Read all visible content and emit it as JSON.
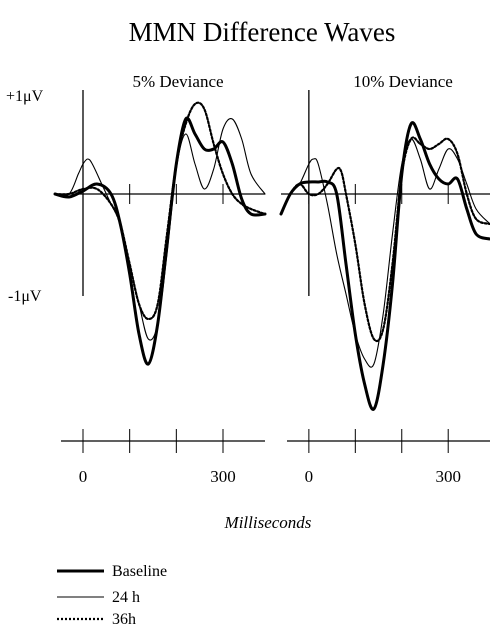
{
  "chart_data": {
    "type": "line",
    "title": "MMN Difference Waves",
    "xlabel": "Milliseconds",
    "y_tick_labels": {
      "top": "+1μV",
      "bottom": "-1μV"
    },
    "x_tick_labels": [
      "0",
      "300"
    ],
    "ylim": [
      -2.3,
      1.55
    ],
    "series_styles": [
      {
        "name": "Baseline",
        "stroke": "#000000",
        "width": 3.0,
        "dash": ""
      },
      {
        "name": "24 h",
        "stroke": "#000000",
        "width": 1.1,
        "dash": ""
      },
      {
        "name": "36h",
        "stroke": "#000000",
        "width": 2.2,
        "dash": "2,2"
      }
    ],
    "panels": [
      {
        "title": "5% Deviance",
        "xlim": [
          -60,
          390
        ],
        "series": [
          {
            "name": "Baseline",
            "x": [
              -60,
              -30,
              0,
              30,
              60,
              80,
              100,
              120,
              140,
              160,
              180,
              200,
              220,
              240,
              260,
              280,
              300,
              320,
              340,
              360,
              390
            ],
            "y": [
              0.0,
              -0.03,
              0.03,
              0.1,
              0.0,
              -0.3,
              -0.8,
              -1.4,
              -1.7,
              -1.3,
              -0.5,
              0.3,
              0.75,
              0.6,
              0.45,
              0.45,
              0.52,
              0.3,
              -0.05,
              -0.2,
              -0.2
            ]
          },
          {
            "name": "24 h",
            "x": [
              -60,
              -30,
              -10,
              0,
              10,
              20,
              40,
              60,
              80,
              100,
              120,
              140,
              160,
              180,
              200,
              220,
              240,
              260,
              280,
              300,
              320,
              340,
              360,
              390
            ],
            "y": [
              0.0,
              0.0,
              0.2,
              0.3,
              0.35,
              0.3,
              0.1,
              -0.1,
              -0.3,
              -0.7,
              -1.1,
              -1.45,
              -1.3,
              -0.6,
              0.25,
              0.6,
              0.3,
              0.05,
              0.25,
              0.65,
              0.75,
              0.55,
              0.2,
              0.0
            ]
          },
          {
            "name": "36h",
            "x": [
              -60,
              -30,
              0,
              30,
              60,
              80,
              100,
              120,
              140,
              160,
              180,
              200,
              220,
              240,
              260,
              280,
              300,
              320,
              340,
              360,
              390
            ],
            "y": [
              0.0,
              0.0,
              0.05,
              0.05,
              -0.1,
              -0.3,
              -0.7,
              -1.1,
              -1.25,
              -1.1,
              -0.4,
              0.3,
              0.7,
              0.9,
              0.85,
              0.5,
              0.2,
              0.0,
              -0.1,
              -0.15,
              -0.2
            ]
          }
        ]
      },
      {
        "title": "10% Deviance",
        "xlim": [
          -60,
          390
        ],
        "series": [
          {
            "name": "Baseline",
            "x": [
              -60,
              -40,
              -20,
              0,
              20,
              40,
              60,
              80,
              100,
              120,
              140,
              160,
              180,
              200,
              220,
              240,
              260,
              280,
              300,
              320,
              340,
              360,
              390
            ],
            "y": [
              -0.2,
              0.0,
              0.1,
              0.12,
              0.12,
              0.12,
              0.0,
              -0.7,
              -1.4,
              -1.9,
              -2.15,
              -1.7,
              -0.9,
              0.2,
              0.7,
              0.55,
              0.3,
              0.15,
              0.1,
              0.15,
              -0.15,
              -0.4,
              -0.45
            ]
          },
          {
            "name": "24 h",
            "x": [
              -60,
              -40,
              -20,
              0,
              10,
              20,
              40,
              60,
              80,
              100,
              120,
              140,
              160,
              180,
              200,
              220,
              240,
              260,
              280,
              300,
              320,
              340,
              360,
              390
            ],
            "y": [
              -0.2,
              0.0,
              0.1,
              0.3,
              0.35,
              0.3,
              -0.1,
              -0.6,
              -1.0,
              -1.4,
              -1.65,
              -1.7,
              -1.2,
              -0.4,
              0.3,
              0.55,
              0.35,
              0.05,
              0.25,
              0.45,
              0.35,
              0.1,
              -0.15,
              -0.3
            ]
          },
          {
            "name": "36h",
            "x": [
              -60,
              -40,
              -20,
              0,
              20,
              40,
              60,
              70,
              80,
              100,
              120,
              140,
              160,
              180,
              200,
              220,
              240,
              260,
              280,
              300,
              320,
              340,
              360,
              390
            ],
            "y": [
              -0.2,
              0.0,
              0.1,
              0.0,
              0.0,
              0.1,
              0.25,
              0.22,
              0.0,
              -0.5,
              -1.1,
              -1.45,
              -1.35,
              -0.7,
              0.2,
              0.55,
              0.5,
              0.45,
              0.5,
              0.55,
              0.4,
              0.0,
              -0.25,
              -0.3
            ]
          }
        ]
      }
    ],
    "legend": [
      "Baseline",
      "24 h",
      "36h"
    ],
    "legend_position": "bottom-left",
    "grid": false
  }
}
